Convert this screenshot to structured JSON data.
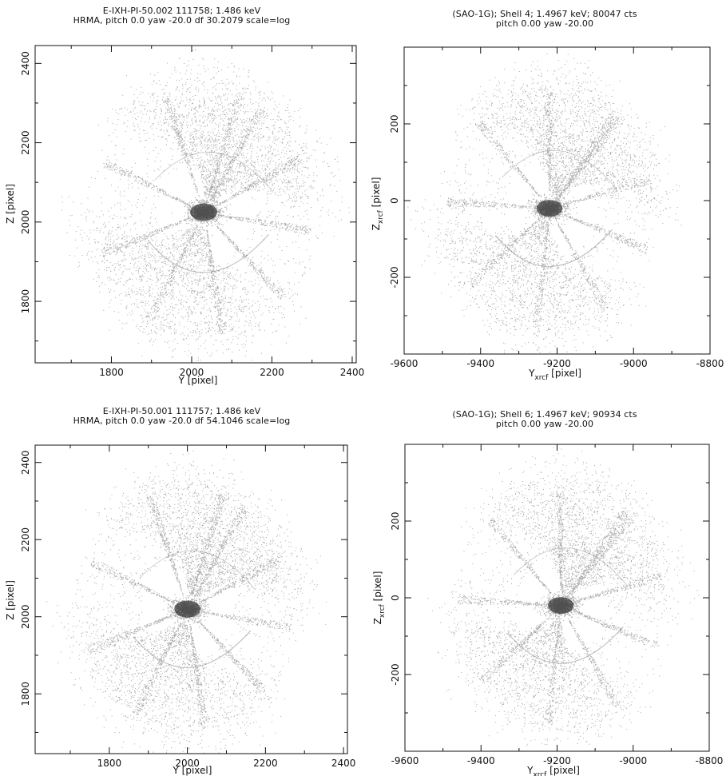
{
  "chart_data": [
    {
      "type": "scatter",
      "title": "E-IXH-PI-50.002 111758; 1.486 keV",
      "subtitle": "HRMA, pitch 0.0 yaw -20.0 df 30.2079 scale=log",
      "xlabel": "Y [pixel]",
      "ylabel": "Z [pixel]",
      "xlabel_main": "",
      "xlabel_sub": "",
      "xlabel_tail": "",
      "ylabel_main": "",
      "ylabel_sub": "",
      "ylabel_tail": "",
      "xlim": [
        1610,
        2410
      ],
      "ylim": [
        1645,
        2445
      ],
      "xticks": [
        1800,
        2000,
        2200,
        2400
      ],
      "yticks": [
        1800,
        2000,
        2200,
        2400
      ],
      "xtick_labels": [
        "1800",
        "2000",
        "2200",
        "2400"
      ],
      "ytick_labels": [
        "1800",
        "2000",
        "2200",
        "2400"
      ],
      "core_center": [
        2030,
        2025
      ],
      "grid": false,
      "legend": "none"
    },
    {
      "type": "scatter",
      "title": "(SAO-1G); Shell 4; 1.4967 keV; 80047 cts",
      "subtitle": "pitch 0.00 yaw -20.00",
      "xlabel": "",
      "ylabel": "",
      "xlabel_main": "Y",
      "xlabel_sub": "xrcf",
      "xlabel_tail": " [pixel]",
      "ylabel_main": "Z",
      "ylabel_sub": "xrcf",
      "ylabel_tail": " [pixel]",
      "xlim": [
        -9600,
        -8800
      ],
      "ylim": [
        -400,
        400
      ],
      "xticks": [
        -9600,
        -9400,
        -9200,
        -9000,
        -8800
      ],
      "yticks": [
        -200,
        0,
        200
      ],
      "xtick_labels": [
        "-9600",
        "-9400",
        "-9200",
        "-9000",
        "-8800"
      ],
      "ytick_labels": [
        "-200",
        "0",
        "200"
      ],
      "core_center": [
        -9220,
        -20
      ],
      "grid": false,
      "legend": "none"
    },
    {
      "type": "scatter",
      "title": "E-IXH-PI-50.001 111757; 1.486 keV",
      "subtitle": "HRMA, pitch 0.0 yaw -20.0 df 54.1046 scale=log",
      "xlabel": "Y [pixel]",
      "ylabel": "Z [pixel]",
      "xlabel_main": "",
      "xlabel_sub": "",
      "xlabel_tail": "",
      "ylabel_main": "",
      "ylabel_sub": "",
      "ylabel_tail": "",
      "xlim": [
        1610,
        2410
      ],
      "ylim": [
        1645,
        2445
      ],
      "xticks": [
        1800,
        2000,
        2200,
        2400
      ],
      "yticks": [
        1800,
        2000,
        2200,
        2400
      ],
      "xtick_labels": [
        "1800",
        "2000",
        "2200",
        "2400"
      ],
      "ytick_labels": [
        "1800",
        "2000",
        "2200",
        "2400"
      ],
      "core_center": [
        2000,
        2020
      ],
      "grid": false,
      "legend": "none"
    },
    {
      "type": "scatter",
      "title": "(SAO-1G); Shell 6; 1.4967 keV; 90934 cts",
      "subtitle": "pitch 0.00 yaw -20.00",
      "xlabel": "",
      "ylabel": "",
      "xlabel_main": "Y",
      "xlabel_sub": "xrcf",
      "xlabel_tail": " [pixel]",
      "ylabel_main": "Z",
      "ylabel_sub": "xrcf",
      "ylabel_tail": " [pixel]",
      "xlim": [
        -9600,
        -8800
      ],
      "ylim": [
        -400,
        400
      ],
      "xticks": [
        -9600,
        -9400,
        -9200,
        -9000,
        -8800
      ],
      "yticks": [
        -200,
        0,
        200
      ],
      "xtick_labels": [
        "-9600",
        "-9400",
        "-9200",
        "-9000",
        "-8800"
      ],
      "ytick_labels": [
        "-200",
        "0",
        "200"
      ],
      "core_center": [
        -9190,
        -20
      ],
      "grid": false,
      "legend": "none"
    }
  ]
}
